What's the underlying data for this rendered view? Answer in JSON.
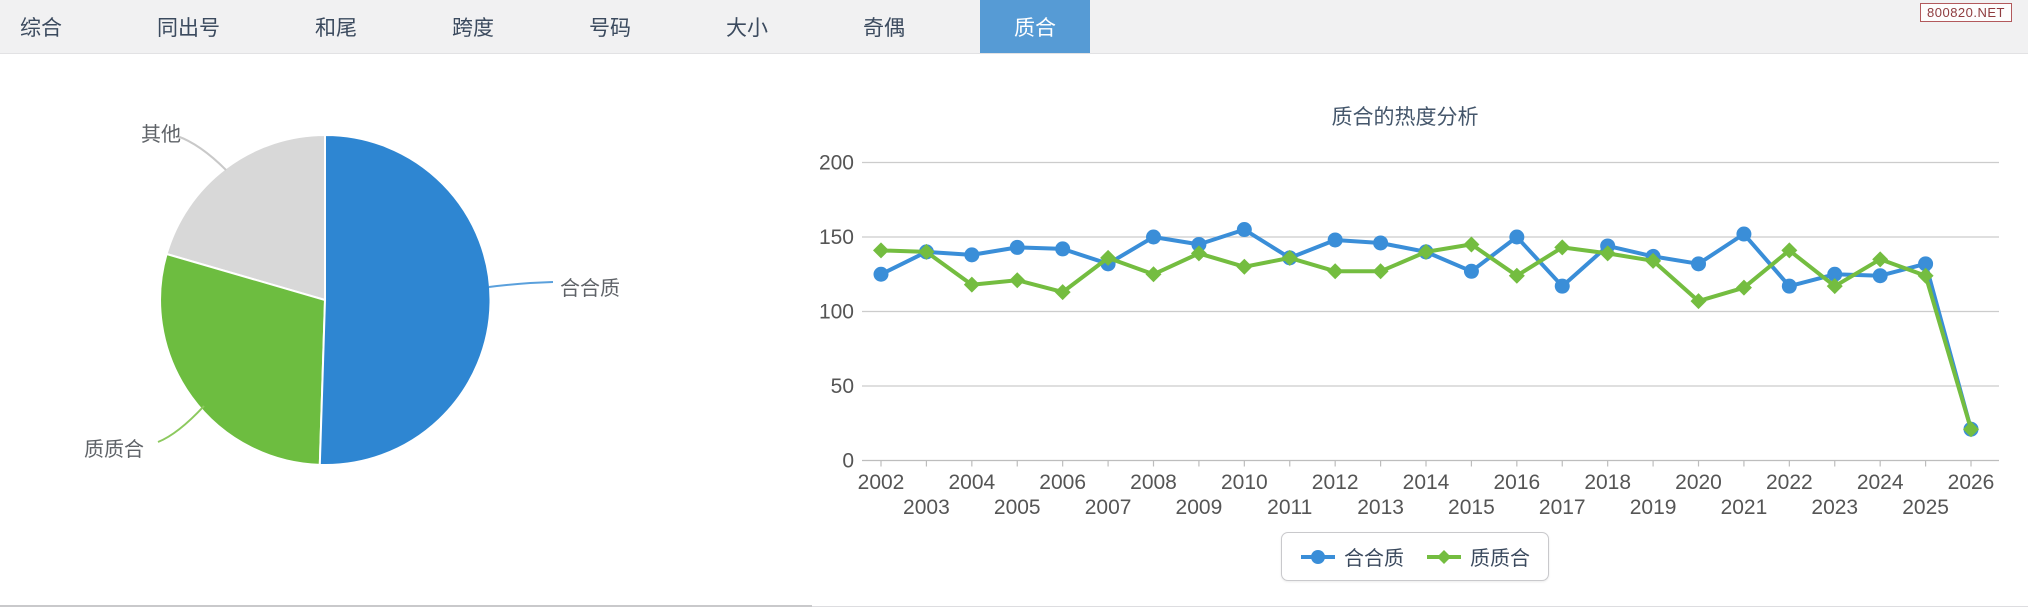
{
  "header": {
    "tabs": [
      {
        "id": "zonghe",
        "label": "综合",
        "active": false
      },
      {
        "id": "tongchuhao",
        "label": "同出号",
        "active": false
      },
      {
        "id": "hewei",
        "label": "和尾",
        "active": false
      },
      {
        "id": "kuadu",
        "label": "跨度",
        "active": false
      },
      {
        "id": "haoma",
        "label": "号码",
        "active": false
      },
      {
        "id": "daxiao",
        "label": "大小",
        "active": false
      },
      {
        "id": "qiou",
        "label": "奇偶",
        "active": false
      },
      {
        "id": "zhihe",
        "label": "质合",
        "active": true
      }
    ],
    "badge": "800820.NET"
  },
  "colors": {
    "active_tab": "#569bd5",
    "series_blue": "#3a8ed8",
    "series_green": "#74bd40",
    "pie_blue": "#2e86d2",
    "pie_green": "#6dbd40",
    "pie_gray": "#d8d8d8",
    "axis_text": "#555555",
    "grid_line": "#cccccc"
  },
  "chart_data": [
    {
      "type": "pie",
      "labels": [
        "合合质",
        "质质合",
        "其他"
      ],
      "values": [
        50.5,
        29.0,
        20.5
      ],
      "unit": "percent_estimated",
      "colors": [
        "#2e86d2",
        "#6dbd40",
        "#d8d8d8"
      ],
      "start_angle": "top",
      "direction": "clockwise"
    },
    {
      "type": "line",
      "title": "质合的热度分析",
      "categories": [
        2002,
        2003,
        2004,
        2005,
        2006,
        2007,
        2008,
        2009,
        2010,
        2011,
        2012,
        2013,
        2014,
        2015,
        2016,
        2017,
        2018,
        2019,
        2020,
        2021,
        2022,
        2023,
        2024,
        2025,
        2026
      ],
      "series": [
        {
          "name": "合合质",
          "color": "#3a8ed8",
          "marker": "circle",
          "values": [
            125,
            140,
            138,
            143,
            142,
            132,
            150,
            145,
            155,
            136,
            148,
            146,
            140,
            127,
            150,
            117,
            144,
            137,
            132,
            152,
            117,
            125,
            124,
            132,
            21
          ]
        },
        {
          "name": "质质合",
          "color": "#74bd40",
          "marker": "diamond",
          "values": [
            141,
            140,
            118,
            121,
            113,
            136,
            125,
            139,
            130,
            136,
            127,
            127,
            140,
            145,
            124,
            143,
            139,
            134,
            107,
            116,
            141,
            117,
            135,
            124,
            21
          ]
        }
      ],
      "ylim": [
        0,
        200
      ],
      "yticks": [
        0,
        50,
        100,
        150,
        200
      ],
      "grid": true,
      "legend_position": "bottom"
    }
  ]
}
